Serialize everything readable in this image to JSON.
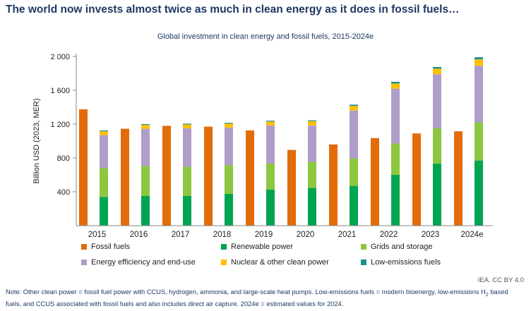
{
  "title": "The world now invests almost twice as much in clean energy as it does in fossil fuels…",
  "chart_data": {
    "type": "bar",
    "title": "Global investment in clean energy and fossil fuels, 2015-2024e",
    "ylabel": "Billion USD (2023, MER)",
    "xlabel": "",
    "ylim": [
      0,
      2000
    ],
    "yticks": [
      400,
      800,
      1200,
      1600,
      2000
    ],
    "ytick_labels": [
      "400",
      "800",
      "1 200",
      "1 600",
      "2 000"
    ],
    "categories": [
      "2015",
      "2016",
      "2017",
      "2018",
      "2019",
      "2020",
      "2021",
      "2022",
      "2023",
      "2024e"
    ],
    "fossil": {
      "name": "Fossil fuels",
      "color": "#e36c0a",
      "values": [
        1375,
        1145,
        1180,
        1170,
        1125,
        895,
        960,
        1035,
        1090,
        1115
      ]
    },
    "clean_series": [
      {
        "name": "Renewable power",
        "color": "#00a550",
        "values": [
          340,
          350,
          350,
          375,
          425,
          445,
          470,
          600,
          735,
          770
        ]
      },
      {
        "name": "Grids and storage",
        "color": "#8dc63f",
        "values": [
          340,
          355,
          345,
          340,
          310,
          310,
          325,
          370,
          415,
          450
        ]
      },
      {
        "name": "Energy efficiency and end-use",
        "color": "#b09dc9",
        "values": [
          390,
          440,
          455,
          445,
          450,
          430,
          565,
          650,
          640,
          670
        ]
      },
      {
        "name": "Nuclear & other clean power",
        "color": "#ffc000",
        "values": [
          45,
          45,
          45,
          45,
          45,
          50,
          55,
          60,
          65,
          75
        ]
      },
      {
        "name": "Low-emissions fuels",
        "color": "#1a8f8f",
        "values": [
          10,
          10,
          10,
          10,
          10,
          10,
          15,
          20,
          20,
          25
        ]
      }
    ],
    "legend_position": "bottom"
  },
  "legend": [
    {
      "label": "Fossil fuels",
      "color": "#e36c0a"
    },
    {
      "label": "Renewable power",
      "color": "#00a550"
    },
    {
      "label": "Grids and storage",
      "color": "#8dc63f"
    },
    {
      "label": "Energy efficiency and end-use",
      "color": "#b09dc9"
    },
    {
      "label": "Nuclear & other clean power",
      "color": "#ffc000"
    },
    {
      "label": "Low-emissions fuels",
      "color": "#1a8f8f"
    }
  ],
  "credit": "IEA. CC BY 4.0",
  "note": {
    "part1": "Note: Other clean power = fossil fuel power with CCUS, hydrogen, ammonia, and large-scale heat pumps. Low-emissions fuels = modern bioenergy, low-emissions H",
    "sub": "2",
    "part2": " based fuels, and CCUS associated with fossil fuels and also includes direct air capture. 2024e = estimated values for 2024."
  }
}
